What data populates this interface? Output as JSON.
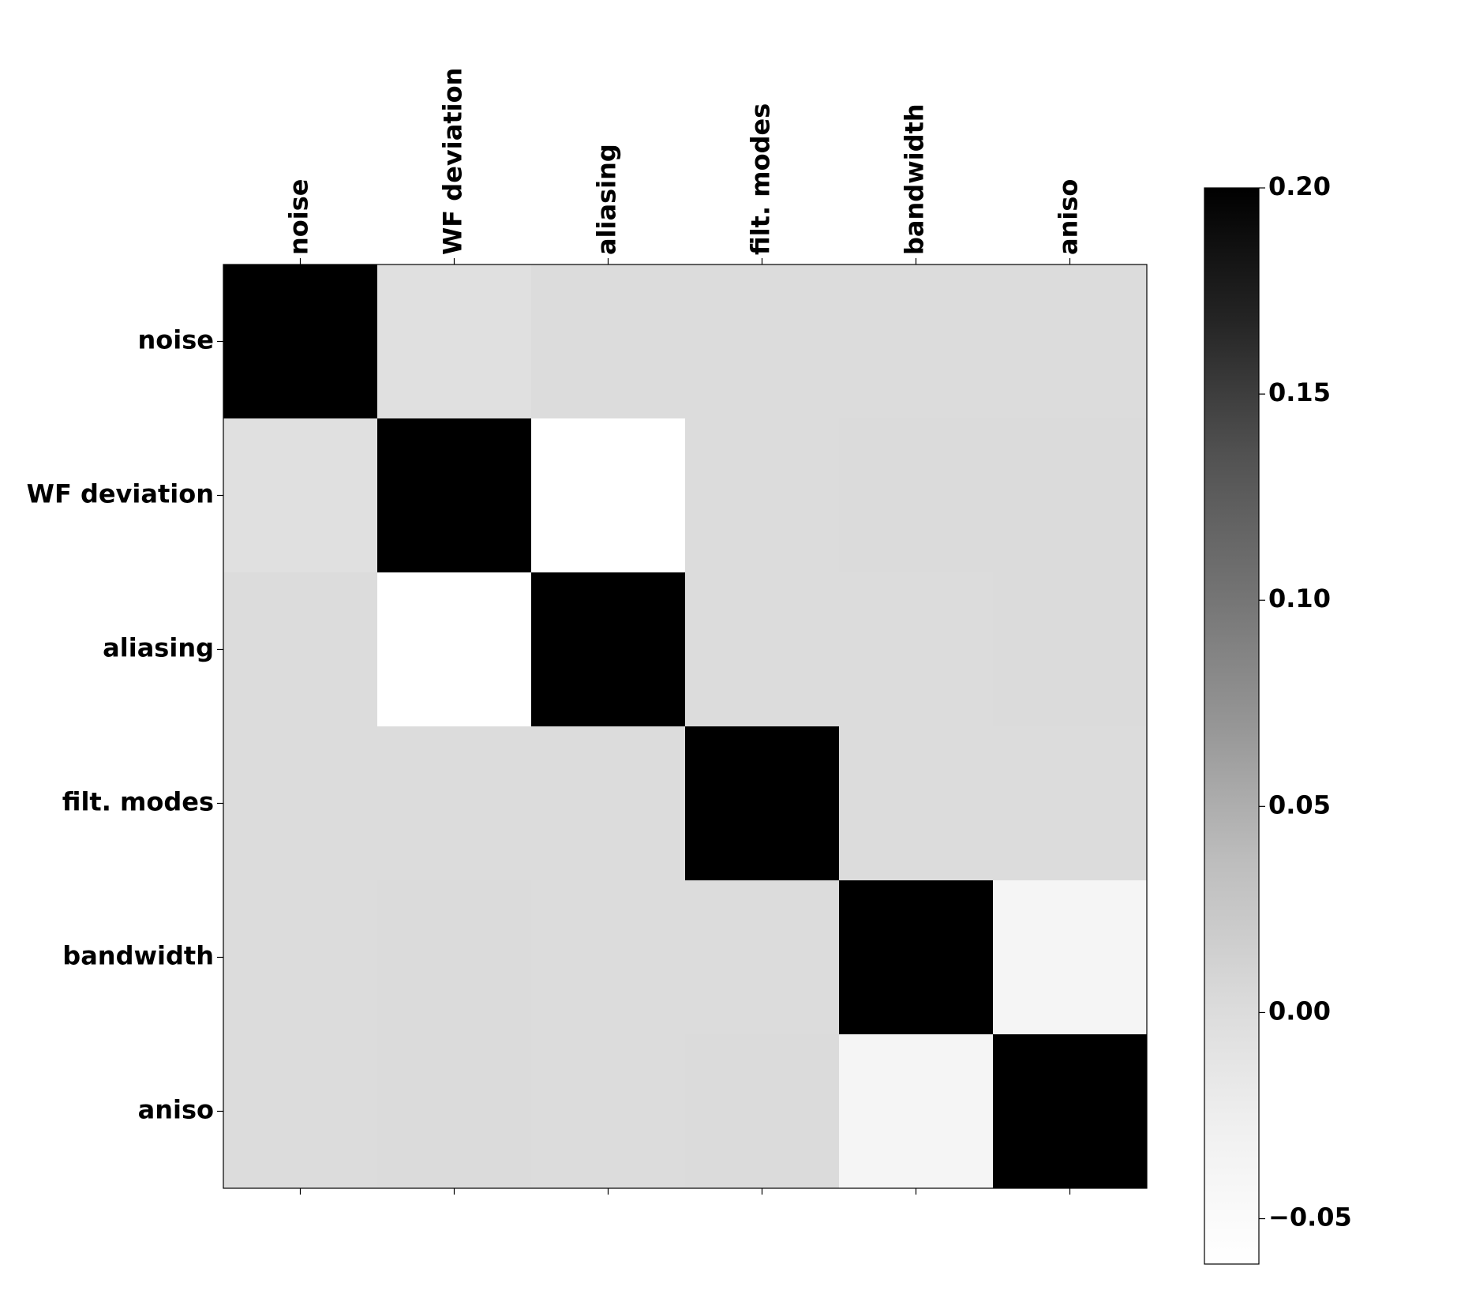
{
  "chart_data": {
    "type": "heatmap",
    "categories": [
      "noise",
      "WF deviation",
      "aliasing",
      "filt. modes",
      "bandwidth",
      "aniso"
    ],
    "values": [
      [
        0.2,
        -0.005,
        0,
        0,
        0,
        0
      ],
      [
        -0.005,
        0.2,
        -0.06,
        0,
        0.002,
        0.002
      ],
      [
        0,
        -0.06,
        0.2,
        0,
        0,
        0.001
      ],
      [
        0,
        0,
        0,
        0.2,
        0,
        0
      ],
      [
        0,
        0.002,
        0,
        0,
        0.2,
        -0.04
      ],
      [
        0,
        0.002,
        0,
        0.001,
        -0.04,
        0.2
      ]
    ],
    "colormap": "Greys",
    "clim": [
      -0.061,
      0.2
    ],
    "colorbar_ticks": [
      {
        "value": 0.2,
        "label": "0.20"
      },
      0.15,
      {
        "value": 0.1,
        "label": "0.10"
      },
      0.05,
      {
        "value": 0,
        "label": "0.00"
      },
      {
        "value": -0.05,
        "label": "−0.05"
      }
    ]
  }
}
